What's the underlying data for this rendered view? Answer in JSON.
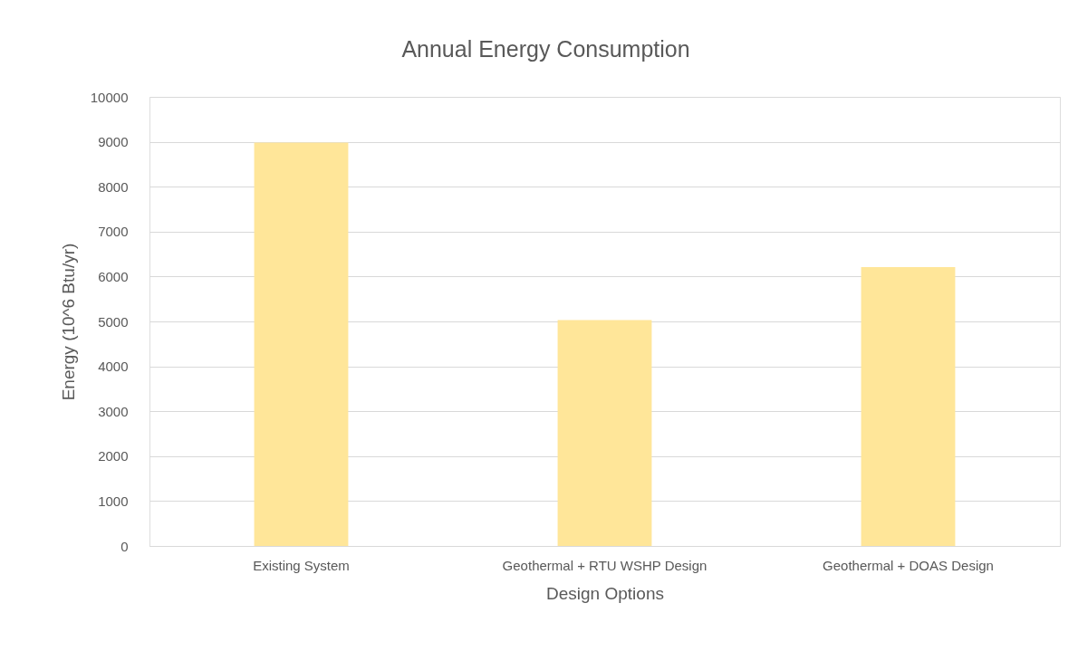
{
  "chart_data": {
    "type": "bar",
    "title": "Annual Energy Consumption",
    "xlabel": "Design Options",
    "ylabel": "Energy (10^6 Btu/yr)",
    "categories": [
      "Existing System",
      "Geothermal + RTU WSHP Design",
      "Geothermal + DOAS Design"
    ],
    "values": [
      8980,
      5030,
      6210
    ],
    "color": "#ffe699",
    "ylim": [
      0,
      10000
    ],
    "yticks": [
      0,
      1000,
      2000,
      3000,
      4000,
      5000,
      6000,
      7000,
      8000,
      9000,
      10000
    ],
    "grid": "y"
  }
}
